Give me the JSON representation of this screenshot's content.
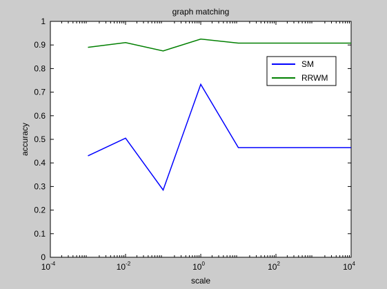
{
  "chart_data": {
    "type": "line",
    "title": "graph matching",
    "xlabel": "scale",
    "ylabel": "accuracy",
    "x_scale": "log",
    "xlim": [
      0.0001,
      10000
    ],
    "ylim": [
      0,
      1
    ],
    "x_ticks": [
      {
        "value": 0.0001,
        "base": "10",
        "exp": "-4"
      },
      {
        "value": 0.01,
        "base": "10",
        "exp": "-2"
      },
      {
        "value": 1,
        "base": "10",
        "exp": "0"
      },
      {
        "value": 100,
        "base": "10",
        "exp": "2"
      },
      {
        "value": 10000,
        "base": "10",
        "exp": "4"
      }
    ],
    "y_ticks": [
      {
        "value": 0,
        "label": "0"
      },
      {
        "value": 0.1,
        "label": "0.1"
      },
      {
        "value": 0.2,
        "label": "0.2"
      },
      {
        "value": 0.3,
        "label": "0.3"
      },
      {
        "value": 0.4,
        "label": "0.4"
      },
      {
        "value": 0.5,
        "label": "0.5"
      },
      {
        "value": 0.6,
        "label": "0.6"
      },
      {
        "value": 0.7,
        "label": "0.7"
      },
      {
        "value": 0.8,
        "label": "0.8"
      },
      {
        "value": 0.9,
        "label": "0.9"
      },
      {
        "value": 1,
        "label": "1"
      }
    ],
    "x": [
      0.001,
      0.01,
      0.1,
      1,
      10,
      100,
      1000,
      10000
    ],
    "series": [
      {
        "name": "SM",
        "color": "#0000ff",
        "values": [
          0.43,
          0.505,
          0.285,
          0.733,
          0.465,
          0.465,
          0.465,
          0.465
        ]
      },
      {
        "name": "RRWM",
        "color": "#007f00",
        "values": [
          0.89,
          0.91,
          0.875,
          0.925,
          0.908,
          0.908,
          0.908,
          0.908
        ]
      }
    ],
    "legend_position": "top-right",
    "grid": false
  }
}
